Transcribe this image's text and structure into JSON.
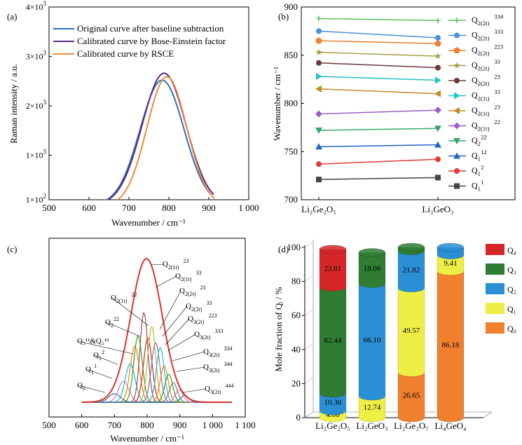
{
  "colors": {
    "blue": "#2f6fb5",
    "purple": "#5b2a86",
    "orange": "#f08a3c",
    "red": "#d62728",
    "green": "#2e7d32",
    "sky": "#2b8fd6",
    "yellow": "#eeee44",
    "q0orange": "#f07f2e"
  },
  "chart_data": [
    {
      "panel": "(a)",
      "type": "line",
      "xlabel": "Wavenumber / cm⁻¹",
      "ylabel": "Raman intensity / a.u.",
      "xlim": [
        500,
        1000
      ],
      "ylim": [
        100,
        4000
      ],
      "xticks": [
        "500",
        "600",
        "700",
        "800",
        "900",
        "1 000"
      ],
      "yticks": [
        {
          "v": 100,
          "base": "1×10",
          "exp": "2"
        },
        {
          "v": 1000,
          "base": "1×10",
          "exp": "3"
        },
        {
          "v": 2000,
          "base": "2×10",
          "exp": "3"
        },
        {
          "v": 3000,
          "base": "3×10",
          "exp": "3"
        },
        {
          "v": 4000,
          "base": "4×10",
          "exp": "3"
        }
      ],
      "series": [
        {
          "name": "Original curve after baseline subtraction",
          "color": "#2f6fb5",
          "peak_x": 783,
          "peak_y": 2520,
          "sigma": 55,
          "start_x": 645,
          "end_x": 905
        },
        {
          "name": "Calibrated curve by Bose-Einstein factor",
          "color": "#5b2a86",
          "peak_x": 788,
          "peak_y": 2660,
          "sigma": 55,
          "start_x": 648,
          "end_x": 912
        },
        {
          "name": "Calibrated curve by RSCE",
          "color": "#f08a3c",
          "peak_x": 795,
          "peak_y": 2590,
          "sigma": 50,
          "start_x": 672,
          "end_x": 915
        }
      ],
      "legend": "top-left"
    },
    {
      "panel": "(b)",
      "type": "line",
      "categories": [
        "Li₂Ge₂O₅",
        "Li₂GeO₃"
      ],
      "ylabel": "Wavenumber / cm⁻¹",
      "ylim": [
        700,
        900
      ],
      "yticks": [
        "700",
        "750",
        "800",
        "850",
        "900"
      ],
      "series": [
        {
          "base": "Q",
          "sub": "2(2t)",
          "sup": "334",
          "values": [
            888,
            886
          ],
          "color": "#5cbf5c",
          "marker": "plus"
        },
        {
          "base": "Q",
          "sub": "2(2t)",
          "sup": "333",
          "values": [
            875,
            868
          ],
          "color": "#4a90d9",
          "marker": "circle"
        },
        {
          "base": "Q",
          "sub": "2(2t)",
          "sup": "223",
          "values": [
            865,
            862
          ],
          "color": "#f07f2e",
          "marker": "pentagon"
        },
        {
          "base": "Q",
          "sub": "2(2t)",
          "sup": "33",
          "values": [
            853,
            849
          ],
          "color": "#a8a04a",
          "marker": "star"
        },
        {
          "base": "Q",
          "sub": "2(2t)",
          "sup": "23",
          "values": [
            842,
            837
          ],
          "color": "#6b3a3a",
          "marker": "circle"
        },
        {
          "base": "Q",
          "sub": "2(1t)",
          "sup": "33",
          "values": [
            828,
            824
          ],
          "color": "#26c2c2",
          "marker": "tri-right"
        },
        {
          "base": "Q",
          "sub": "2(1t)",
          "sup": "23",
          "values": [
            815,
            810
          ],
          "color": "#c08a2a",
          "marker": "tri-left"
        },
        {
          "base": "Q",
          "sub": "2(1t)",
          "sup": "22",
          "values": [
            789,
            793
          ],
          "color": "#9b5fc8",
          "marker": "diamond"
        },
        {
          "base": "Q",
          "sub": "2",
          "sup": "22",
          "values": [
            772,
            774
          ],
          "color": "#34a86a",
          "marker": "tri-down"
        },
        {
          "base": "Q",
          "sub": "1",
          "sup": "12",
          "values": [
            755,
            757
          ],
          "color": "#2266c4",
          "marker": "tri-up"
        },
        {
          "base": "Q",
          "sub": "1",
          "sup": "2",
          "values": [
            737,
            742
          ],
          "color": "#e23b3b",
          "marker": "circle"
        },
        {
          "base": "Q",
          "sub": "1",
          "sup": "1",
          "values": [
            721,
            723
          ],
          "color": "#444444",
          "marker": "square"
        }
      ],
      "legend": "right"
    },
    {
      "panel": "(c)",
      "type": "line",
      "xlabel": "Wavenumber / cm⁻¹",
      "xlim": [
        500,
        1100
      ],
      "xticks": [
        "500",
        "600",
        "700",
        "800",
        "900",
        "1 000",
        "1 100"
      ],
      "annotations": [
        {
          "base": "Q",
          "sub": "2(1t)",
          "sup": "23"
        },
        {
          "base": "Q",
          "sub": "2(1t)",
          "sup": "33"
        },
        {
          "base": "Q",
          "sub": "2(1t)",
          "sup": "22"
        },
        {
          "base": "Q",
          "sub": "2(2t)",
          "sup": "23"
        },
        {
          "base": "Q",
          "sub": "2(2t)",
          "sup": "33"
        },
        {
          "base": "Q",
          "sub": "2",
          "sup": "22"
        },
        {
          "base": "Q",
          "sub": "3(2t)",
          "sup": "223"
        },
        {
          "base": "Q",
          "sub": "3(2t)",
          "sup": "333"
        },
        {
          "text": "Q₂¹¹&Q₂¹²"
        },
        {
          "base": "Q",
          "sub": "3(2t)",
          "sup": "334"
        },
        {
          "base": "Q",
          "sub": "1",
          "sup": "2"
        },
        {
          "base": "Q",
          "sub": "3(2t)",
          "sup": "344"
        },
        {
          "base": "Q",
          "sub": "1",
          "sup": "1"
        },
        {
          "base": "Q",
          "sub": "0",
          "sup": ""
        },
        {
          "base": "Q",
          "sub": "3(2t)",
          "sup": "444"
        }
      ]
    },
    {
      "panel": "(d)",
      "type": "bar",
      "stacked": true,
      "categories": [
        "Li₂Ge₂O₅",
        "Li₂GeO₃",
        "Li₂Ge₂O₇",
        "Li₄GeO₄"
      ],
      "ylabel": "Mole fraction of Qᵢ / %",
      "ylim": [
        0,
        100
      ],
      "yticks": [
        "0",
        "20",
        "40",
        "60",
        "80",
        "100"
      ],
      "series": [
        {
          "name": "Q₀",
          "color": "#f07f2e",
          "values": [
            0,
            0,
            26.65,
            86.18
          ],
          "labels": [
            "",
            "",
            "26.65",
            "86.18"
          ]
        },
        {
          "name": "Q₁",
          "color": "#eeee44",
          "values": [
            4.06,
            12.74,
            49.57,
            9.41
          ],
          "labels": [
            "4.06",
            "12.74",
            "49.57",
            "9.41"
          ]
        },
        {
          "name": "Q₂",
          "color": "#2b8fd6",
          "values": [
            10.3,
            66.1,
            21.82,
            4.41
          ],
          "labels": [
            "10.30",
            "66.10",
            "21.82",
            ""
          ]
        },
        {
          "name": "Q₃",
          "color": "#2e7d32",
          "values": [
            62.44,
            18.06,
            1.96,
            0
          ],
          "labels": [
            "62.44",
            "18.06",
            "",
            ""
          ]
        },
        {
          "name": "Q₄",
          "color": "#d62728",
          "values": [
            22.01,
            0,
            0,
            0
          ],
          "labels": [
            "22.01",
            "",
            "",
            ""
          ]
        }
      ],
      "legend": "right"
    }
  ]
}
